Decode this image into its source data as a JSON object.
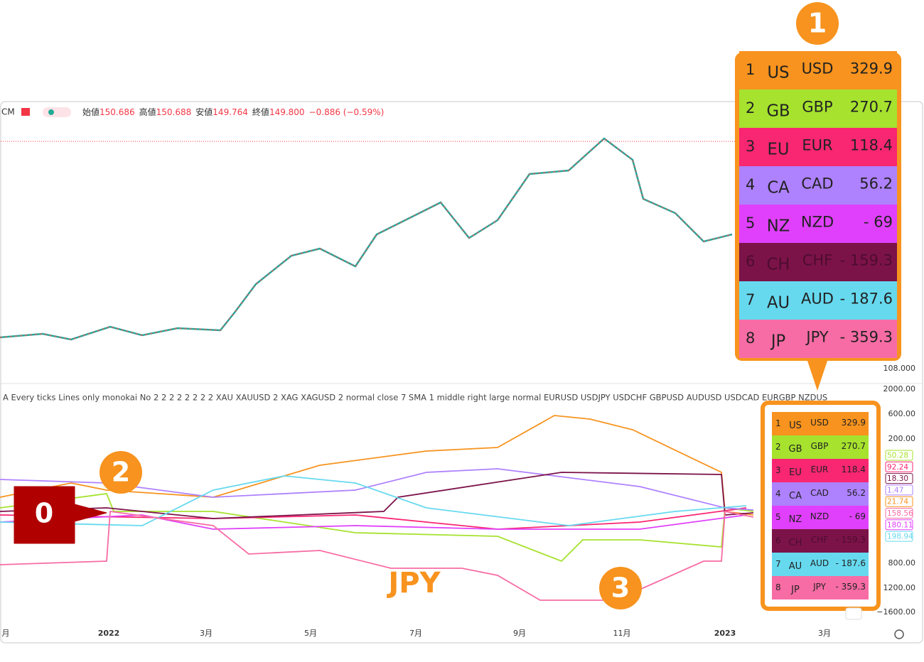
{
  "header": {
    "symbol": "CM",
    "ohlc": [
      {
        "label": "始値",
        "value": "150.686"
      },
      {
        "label": "高値",
        "value": "150.688"
      },
      {
        "label": "安値",
        "value": "149.764"
      },
      {
        "label": "終値",
        "value": "149.800"
      }
    ],
    "change": "−0.886 (−0.59%)"
  },
  "price_axis": [
    "108.000"
  ],
  "indicator_settings": "A Every ticks Lines only monokai No 2 2 2 2 2 2 2 2 XAU XAUUSD 2 XAG XAGUSD 2 normal close 7 SMA 1 middle right large normal EURUSD USDJPY USDCHF GBPUSD AUDUSD USDCAD EURGBP NZDUS",
  "indicator_axis": [
    "2000.00",
    "600.00",
    "200.00",
    "800.00",
    "1200.00",
    "−1600.00"
  ],
  "series_labels": [
    {
      "text": "50.28",
      "color": "#a6e22e"
    },
    {
      "text": "92.24",
      "color": "#f92672"
    },
    {
      "text": "18.30",
      "color": "#7b1349"
    },
    {
      "text": "1.47",
      "color": "#ae81ff"
    },
    {
      "text": "21.74",
      "color": "#f7931e"
    },
    {
      "text": "158.56",
      "color": "#f76ca5"
    },
    {
      "text": "180.11",
      "color": "#e040fb"
    },
    {
      "text": "198.94",
      "color": "#66d9ef"
    }
  ],
  "x_axis": [
    "月",
    "2022",
    "3月",
    "5月",
    "7月",
    "9月",
    "11月",
    "2023",
    "3月"
  ],
  "ranking": {
    "rows": [
      {
        "rank": "1",
        "code": "US",
        "currency": "USD",
        "value": "329.9",
        "color": "#f7931e"
      },
      {
        "rank": "2",
        "code": "GB",
        "currency": "GBP",
        "value": "270.7",
        "color": "#a6e22e"
      },
      {
        "rank": "3",
        "code": "EU",
        "currency": "EUR",
        "value": "118.4",
        "color": "#f92672"
      },
      {
        "rank": "4",
        "code": "CA",
        "currency": "CAD",
        "value": "56.2",
        "color": "#ae81ff"
      },
      {
        "rank": "5",
        "code": "NZ",
        "currency": "NZD",
        "value": "- 69",
        "color": "#e040fb"
      },
      {
        "rank": "6",
        "code": "CH",
        "currency": "CHF",
        "value": "- 159.3",
        "color": "#7b1349"
      },
      {
        "rank": "7",
        "code": "AU",
        "currency": "AUD",
        "value": "- 187.6",
        "color": "#66d9ef"
      },
      {
        "rank": "8",
        "code": "JP",
        "currency": "JPY",
        "value": "- 359.3",
        "color": "#f76ca5"
      }
    ]
  },
  "callouts": {
    "one": "1",
    "two": "2",
    "three": "3",
    "zero": "0",
    "jpy": "JPY"
  }
}
